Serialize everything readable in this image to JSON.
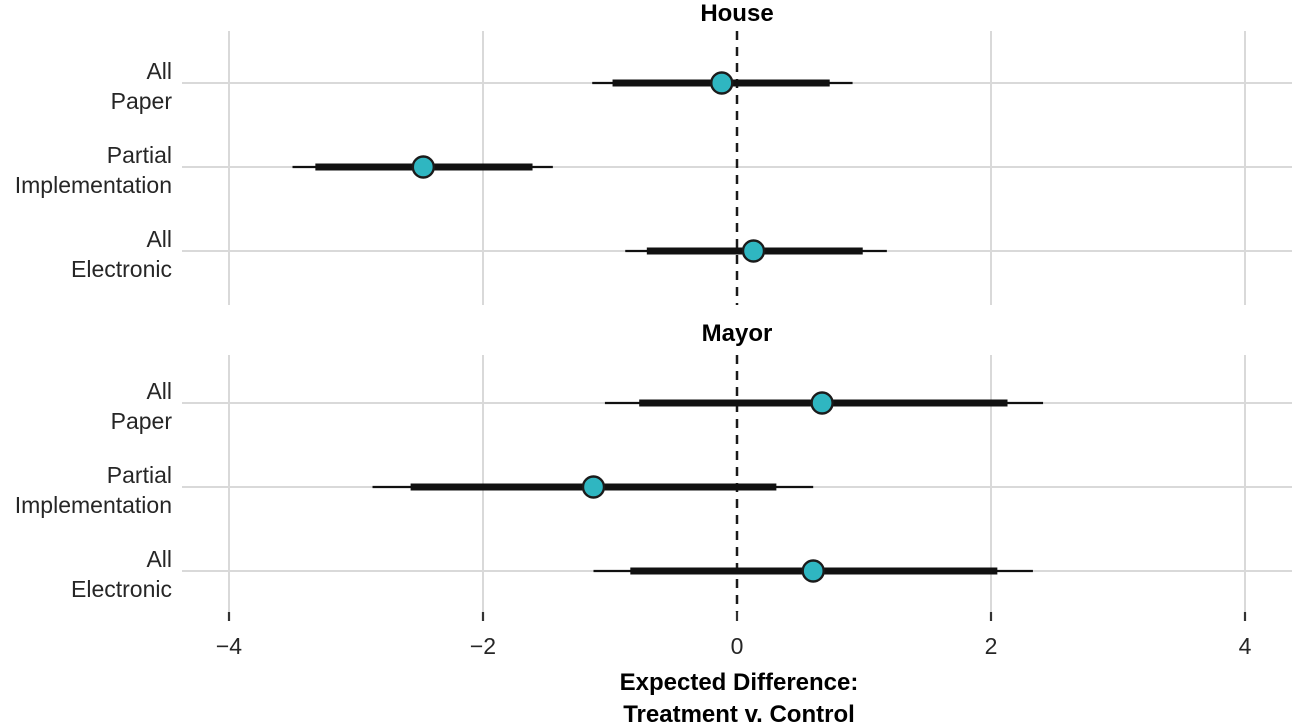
{
  "chart_data": {
    "type": "pointrange",
    "title": "",
    "xlabel_line1": "Expected Difference:",
    "xlabel_line2": "Treatment v. Control",
    "x_ticks": [
      -4,
      -2,
      0,
      2,
      4
    ],
    "x_tick_labels": [
      "−4",
      "−2",
      "0",
      "2",
      "4"
    ],
    "xlim": [
      -4.4,
      4.4
    ],
    "zero_reference_line": 0,
    "grid": true,
    "legend": "none",
    "panels": [
      {
        "title": "House",
        "rows": [
          {
            "label_line1": "All",
            "label_line2": "Paper",
            "estimate": -0.12,
            "inner_ci": [
              -0.98,
              0.73
            ],
            "outer_ci": [
              -1.14,
              0.91
            ]
          },
          {
            "label_line1": "Partial",
            "label_line2": "Implementation",
            "estimate": -2.47,
            "inner_ci": [
              -3.32,
              -1.61
            ],
            "outer_ci": [
              -3.5,
              -1.45
            ]
          },
          {
            "label_line1": "All",
            "label_line2": "Electronic",
            "estimate": 0.13,
            "inner_ci": [
              -0.71,
              0.99
            ],
            "outer_ci": [
              -0.88,
              1.18
            ]
          }
        ]
      },
      {
        "title": "Mayor",
        "rows": [
          {
            "label_line1": "All",
            "label_line2": "Paper",
            "estimate": 0.67,
            "inner_ci": [
              -0.77,
              2.13
            ],
            "outer_ci": [
              -1.04,
              2.41
            ]
          },
          {
            "label_line1": "Partial",
            "label_line2": "Implementation",
            "estimate": -1.13,
            "inner_ci": [
              -2.57,
              0.31
            ],
            "outer_ci": [
              -2.87,
              0.6
            ]
          },
          {
            "label_line1": "All",
            "label_line2": "Electronic",
            "estimate": 0.6,
            "inner_ci": [
              -0.84,
              2.05
            ],
            "outer_ci": [
              -1.13,
              2.33
            ]
          }
        ]
      }
    ],
    "colors": {
      "point_fill": "#2FB6C1",
      "point_stroke": "#1b1b1b",
      "ci_line": "#111111",
      "zero_line": "#1a1a1a",
      "gridline": "#d9d9d9",
      "tick": "#333333",
      "label_text": "#262626",
      "title_text": "#000000"
    }
  }
}
